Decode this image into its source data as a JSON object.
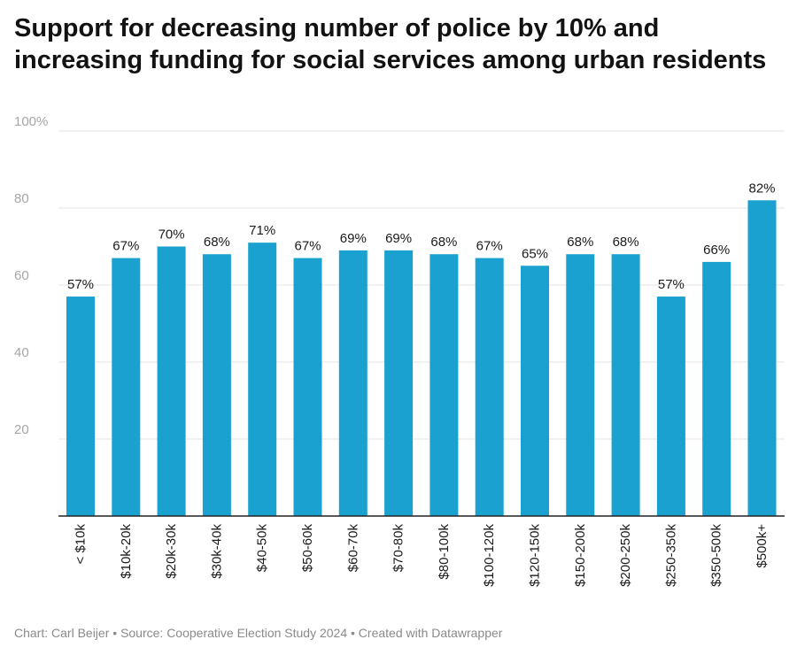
{
  "title": "Support for decreasing number of police by 10% and increasing funding for social services among urban residents",
  "chart_data": {
    "type": "bar",
    "title": "Support for decreasing number of police by 10% and increasing funding for social services among urban residents",
    "xlabel": "",
    "ylabel": "",
    "categories": [
      "< $10k",
      "$10k-20k",
      "$20k-30k",
      "$30k-40k",
      "$40-50k",
      "$50-60k",
      "$60-70k",
      "$70-80k",
      "$80-100k",
      "$100-120k",
      "$120-150k",
      "$150-200k",
      "$200-250k",
      "$250-350k",
      "$350-500k",
      "$500k+"
    ],
    "values": [
      57,
      67,
      70,
      68,
      71,
      67,
      69,
      69,
      68,
      67,
      65,
      68,
      68,
      57,
      66,
      82
    ],
    "value_labels": [
      "57%",
      "67%",
      "70%",
      "68%",
      "71%",
      "67%",
      "69%",
      "69%",
      "68%",
      "67%",
      "65%",
      "68%",
      "68%",
      "57%",
      "66%",
      "82%"
    ],
    "ylim": [
      0,
      100
    ],
    "yticks": [
      20,
      40,
      60,
      80,
      100
    ],
    "ytick_labels": [
      "20",
      "40",
      "60",
      "80",
      "100%"
    ],
    "grid": true,
    "bar_color": "#1aa1d0"
  },
  "footer": {
    "chart_credit": "Chart: Carl Beijer",
    "separator": " • ",
    "source": "Source: Cooperative Election Study 2024",
    "created_with": "Created with Datawrapper"
  }
}
